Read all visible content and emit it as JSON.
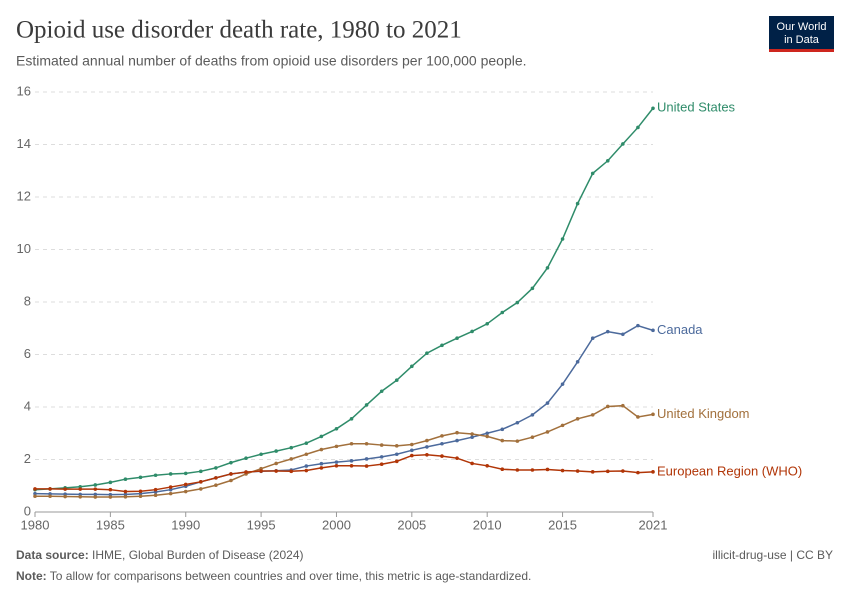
{
  "logo": {
    "line1": "Our World",
    "line2": "in Data"
  },
  "chart_data": {
    "type": "line",
    "title": "Opioid use disorder death rate, 1980 to 2021",
    "subtitle": "Estimated annual number of deaths from opioid use disorders per 100,000 people.",
    "x": [
      1980,
      1981,
      1982,
      1983,
      1984,
      1985,
      1986,
      1987,
      1988,
      1989,
      1990,
      1991,
      1992,
      1993,
      1994,
      1995,
      1996,
      1997,
      1998,
      1999,
      2000,
      2001,
      2002,
      2003,
      2004,
      2005,
      2006,
      2007,
      2008,
      2009,
      2010,
      2011,
      2012,
      2013,
      2014,
      2015,
      2016,
      2017,
      2018,
      2019,
      2020,
      2021
    ],
    "xlim": [
      1980,
      2021
    ],
    "xticks": [
      1980,
      1985,
      1990,
      1995,
      2000,
      2005,
      2010,
      2015,
      2021
    ],
    "ylim": [
      0,
      16
    ],
    "yticks": [
      0,
      2,
      4,
      6,
      8,
      10,
      12,
      14,
      16
    ],
    "grid": true,
    "series": [
      {
        "name": "United States",
        "color": "#2f8c6a",
        "values": [
          0.85,
          0.88,
          0.92,
          0.96,
          1.03,
          1.13,
          1.25,
          1.32,
          1.4,
          1.45,
          1.47,
          1.55,
          1.68,
          1.88,
          2.05,
          2.2,
          2.32,
          2.45,
          2.62,
          2.88,
          3.17,
          3.55,
          4.08,
          4.6,
          5.02,
          5.55,
          6.05,
          6.35,
          6.62,
          6.88,
          7.17,
          7.6,
          7.98,
          8.52,
          9.3,
          10.4,
          11.75,
          12.9,
          13.38,
          14.02,
          14.65,
          15.38
        ]
      },
      {
        "name": "Canada",
        "color": "#4c6a9c",
        "values": [
          0.7,
          0.69,
          0.68,
          0.67,
          0.67,
          0.66,
          0.67,
          0.7,
          0.76,
          0.85,
          0.98,
          1.15,
          1.3,
          1.45,
          1.52,
          1.55,
          1.57,
          1.6,
          1.75,
          1.84,
          1.9,
          1.95,
          2.02,
          2.1,
          2.2,
          2.35,
          2.48,
          2.6,
          2.72,
          2.85,
          3.0,
          3.15,
          3.4,
          3.7,
          4.15,
          4.87,
          5.72,
          6.62,
          6.87,
          6.77,
          7.1,
          6.92
        ]
      },
      {
        "name": "United Kingdom",
        "color": "#a2703c",
        "values": [
          0.6,
          0.6,
          0.59,
          0.58,
          0.57,
          0.57,
          0.58,
          0.6,
          0.64,
          0.7,
          0.78,
          0.88,
          1.02,
          1.2,
          1.45,
          1.65,
          1.85,
          2.02,
          2.2,
          2.38,
          2.5,
          2.6,
          2.6,
          2.55,
          2.52,
          2.57,
          2.72,
          2.9,
          3.02,
          2.97,
          2.88,
          2.72,
          2.7,
          2.85,
          3.05,
          3.3,
          3.55,
          3.7,
          4.02,
          4.05,
          3.62,
          3.72
        ]
      },
      {
        "name": "European Region (WHO)",
        "color": "#b13507",
        "values": [
          0.88,
          0.88,
          0.87,
          0.87,
          0.87,
          0.85,
          0.78,
          0.79,
          0.85,
          0.95,
          1.05,
          1.15,
          1.3,
          1.45,
          1.52,
          1.56,
          1.56,
          1.55,
          1.58,
          1.68,
          1.76,
          1.76,
          1.75,
          1.82,
          1.93,
          2.15,
          2.18,
          2.13,
          2.05,
          1.85,
          1.76,
          1.63,
          1.6,
          1.6,
          1.62,
          1.58,
          1.56,
          1.53,
          1.55,
          1.56,
          1.5,
          1.53
        ]
      }
    ]
  },
  "footer": {
    "source_label": "Data source:",
    "source": "IHME, Global Burden of Disease (2024)",
    "license": "illicit-drug-use | CC BY",
    "note_label": "Note:",
    "note": "To allow for comparisons between countries and over time, this metric is age-standardized."
  }
}
